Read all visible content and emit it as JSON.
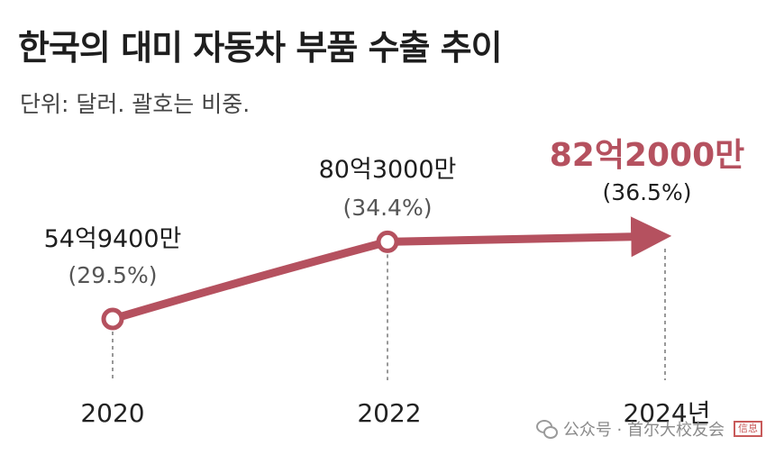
{
  "chart_data": {
    "type": "line",
    "title": "한국의 대미 자동차 부품 수출 추이",
    "subtitle": "단위: 달러. 괄호는 비중.",
    "x": [
      "2020",
      "2022",
      "2024년"
    ],
    "values": [
      5494000000,
      8030000000,
      8220000000
    ],
    "value_labels": [
      "54억9400만",
      "80억3000만",
      "82억2000만"
    ],
    "share_labels": [
      "(29.5%)",
      "(34.4%)",
      "(36.5%)"
    ],
    "shares": [
      29.5,
      34.4,
      36.5
    ],
    "xlabel": "",
    "ylabel": "",
    "grid": false,
    "line_color": "#b5515f"
  },
  "watermark": {
    "icon": "wechat-icon",
    "text": "公众号 · 首尔大校友会",
    "seal_text": "信息"
  }
}
